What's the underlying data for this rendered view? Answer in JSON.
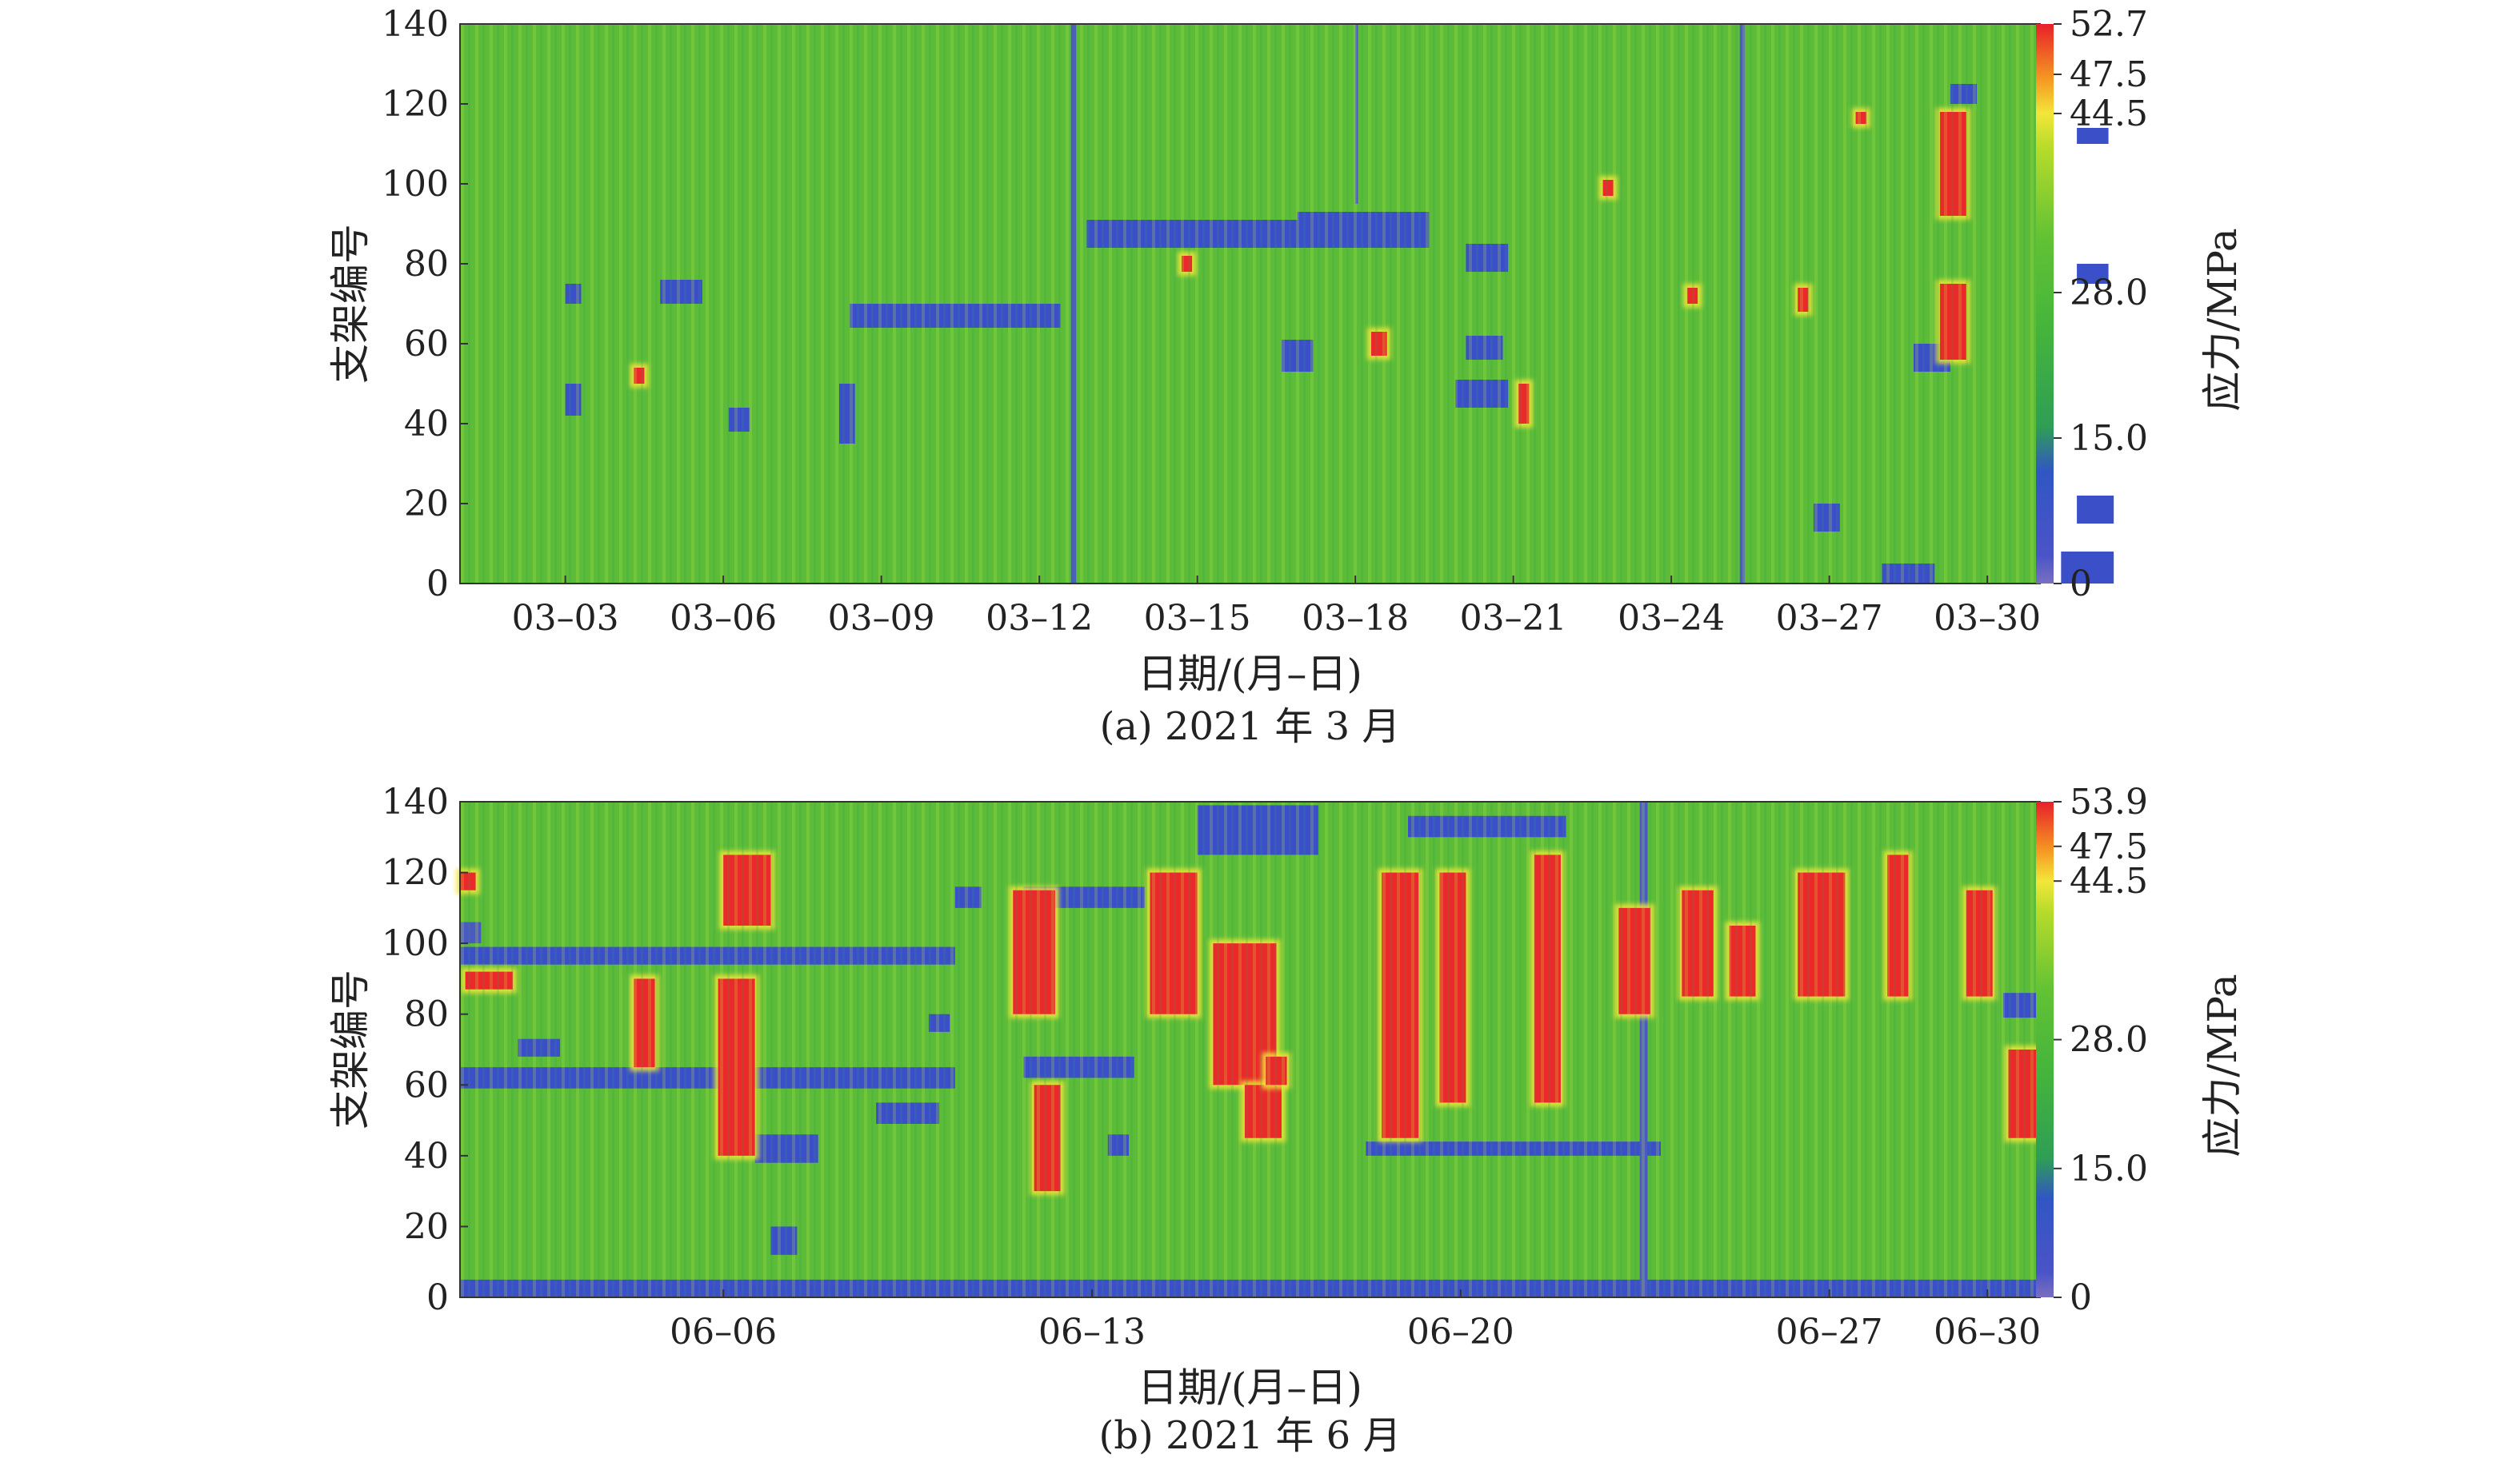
{
  "chart_data": [
    {
      "type": "heatmap",
      "caption": "(a) 2021 年 3 月",
      "xlabel": "日期/(月–日)",
      "ylabel": "支架编号",
      "colorbar_label": "应力/MPa",
      "x_ticks": [
        "03–03",
        "03–06",
        "03–09",
        "03–12",
        "03–15",
        "03–18",
        "03–21",
        "03–24",
        "03–27",
        "03–30"
      ],
      "y_ticks": [
        "0",
        "20",
        "40",
        "60",
        "80",
        "100",
        "120",
        "140"
      ],
      "ylim": [
        0,
        140
      ],
      "colorbar_ticks": [
        "0",
        "15.0",
        "28.0",
        "44.5",
        "47.5",
        "52.7"
      ],
      "colorbar_values": [
        0,
        15.0,
        28.0,
        44.5,
        47.5,
        52.7
      ],
      "features": [
        {
          "kind": "low",
          "x": [
            8.4,
            12.4
          ],
          "y": [
            64,
            70
          ]
        },
        {
          "kind": "low",
          "x": [
            12.9,
            16.9
          ],
          "y": [
            84,
            91
          ]
        },
        {
          "kind": "low",
          "x": [
            16.9,
            19.4
          ],
          "y": [
            84,
            93
          ]
        },
        {
          "kind": "low",
          "x": [
            4.8,
            5.6
          ],
          "y": [
            70,
            76
          ]
        },
        {
          "kind": "low",
          "x": [
            6.1,
            6.5
          ],
          "y": [
            38,
            44
          ]
        },
        {
          "kind": "low",
          "x": [
            20.1,
            20.9
          ],
          "y": [
            78,
            85
          ]
        },
        {
          "kind": "low",
          "x": [
            19.9,
            20.9
          ],
          "y": [
            44,
            51
          ]
        },
        {
          "kind": "low",
          "x": [
            20.1,
            20.8
          ],
          "y": [
            56,
            62
          ]
        },
        {
          "kind": "low",
          "x": [
            16.6,
            17.2
          ],
          "y": [
            53,
            61
          ]
        },
        {
          "kind": "low",
          "x": [
            28.6,
            29.3
          ],
          "y": [
            53,
            60
          ]
        },
        {
          "kind": "low",
          "x": [
            31.7,
            32.4
          ],
          "y": [
            15,
            22
          ]
        },
        {
          "kind": "low",
          "x": [
            31.7,
            32.3
          ],
          "y": [
            110,
            114
          ]
        },
        {
          "kind": "low",
          "x": [
            31.7,
            32.3
          ],
          "y": [
            75,
            80
          ]
        },
        {
          "kind": "low",
          "x": [
            26.7,
            27.2
          ],
          "y": [
            13,
            20
          ]
        },
        {
          "kind": "low",
          "x": [
            28.0,
            29.0
          ],
          "y": [
            0,
            5
          ]
        },
        {
          "kind": "low",
          "x": [
            31.4,
            32.4
          ],
          "y": [
            0,
            8
          ]
        },
        {
          "kind": "low",
          "x": [
            3.0,
            3.3
          ],
          "y": [
            70,
            75
          ]
        },
        {
          "kind": "low",
          "x": [
            3.0,
            3.3
          ],
          "y": [
            42,
            50
          ]
        },
        {
          "kind": "low",
          "x": [
            8.2,
            8.5
          ],
          "y": [
            35,
            50
          ]
        },
        {
          "kind": "low",
          "x": [
            29.3,
            29.8
          ],
          "y": [
            120,
            125
          ]
        },
        {
          "kind": "line",
          "x": [
            12.6,
            12.7
          ],
          "y": [
            0,
            140
          ]
        },
        {
          "kind": "line",
          "x": [
            25.3,
            25.4
          ],
          "y": [
            0,
            140
          ]
        },
        {
          "kind": "line",
          "x": [
            18.0,
            18.05
          ],
          "y": [
            95,
            140
          ]
        },
        {
          "kind": "high",
          "x": [
            29.1,
            29.6
          ],
          "y": [
            92,
            118
          ]
        },
        {
          "kind": "high",
          "x": [
            29.1,
            29.6
          ],
          "y": [
            56,
            75
          ]
        },
        {
          "kind": "high",
          "x": [
            18.3,
            18.6
          ],
          "y": [
            57,
            63
          ]
        },
        {
          "kind": "high",
          "x": [
            4.3,
            4.5
          ],
          "y": [
            50,
            54
          ]
        },
        {
          "kind": "high",
          "x": [
            14.7,
            14.9
          ],
          "y": [
            78,
            82
          ]
        },
        {
          "kind": "high",
          "x": [
            21.1,
            21.3
          ],
          "y": [
            40,
            50
          ]
        },
        {
          "kind": "high",
          "x": [
            22.7,
            22.9
          ],
          "y": [
            97,
            101
          ]
        },
        {
          "kind": "high",
          "x": [
            24.3,
            24.5
          ],
          "y": [
            70,
            74
          ]
        },
        {
          "kind": "high",
          "x": [
            26.4,
            26.6
          ],
          "y": [
            68,
            74
          ]
        },
        {
          "kind": "high",
          "x": [
            27.5,
            27.7
          ],
          "y": [
            115,
            118
          ]
        }
      ]
    },
    {
      "type": "heatmap",
      "caption": "(b) 2021 年 6 月",
      "xlabel": "日期/(月–日)",
      "ylabel": "支架编号",
      "colorbar_label": "应力/MPa",
      "x_ticks": [
        "06–06",
        "06–13",
        "06–20",
        "06–27",
        "06–30"
      ],
      "y_ticks": [
        "0",
        "20",
        "40",
        "60",
        "80",
        "100",
        "120",
        "140"
      ],
      "ylim": [
        0,
        140
      ],
      "colorbar_ticks": [
        "0",
        "15.0",
        "28.0",
        "44.5",
        "47.5",
        "53.9"
      ],
      "colorbar_values": [
        0,
        15.0,
        28.0,
        44.5,
        47.5,
        53.9
      ],
      "features": [
        {
          "kind": "low",
          "x": [
            1.0,
            10.4
          ],
          "y": [
            94,
            99
          ]
        },
        {
          "kind": "low",
          "x": [
            1.0,
            10.4
          ],
          "y": [
            59,
            65
          ]
        },
        {
          "kind": "low",
          "x": [
            1.0,
            31.0
          ],
          "y": [
            0,
            5
          ]
        },
        {
          "kind": "low",
          "x": [
            15.0,
            17.3
          ],
          "y": [
            125,
            139
          ]
        },
        {
          "kind": "low",
          "x": [
            11.7,
            14.0
          ],
          "y": [
            110,
            116
          ]
        },
        {
          "kind": "low",
          "x": [
            11.7,
            13.8
          ],
          "y": [
            62,
            68
          ]
        },
        {
          "kind": "low",
          "x": [
            6.6,
            7.8
          ],
          "y": [
            38,
            46
          ]
        },
        {
          "kind": "low",
          "x": [
            6.9,
            7.4
          ],
          "y": [
            12,
            20
          ]
        },
        {
          "kind": "low",
          "x": [
            9.9,
            10.3
          ],
          "y": [
            75,
            80
          ]
        },
        {
          "kind": "low",
          "x": [
            8.9,
            10.1
          ],
          "y": [
            49,
            55
          ]
        },
        {
          "kind": "low",
          "x": [
            2.1,
            2.9
          ],
          "y": [
            68,
            73
          ]
        },
        {
          "kind": "low",
          "x": [
            19.0,
            22.0
          ],
          "y": [
            130,
            136
          ]
        },
        {
          "kind": "low",
          "x": [
            18.2,
            23.8
          ],
          "y": [
            40,
            44
          ]
        },
        {
          "kind": "low",
          "x": [
            30.3,
            31.0
          ],
          "y": [
            79,
            86
          ]
        },
        {
          "kind": "low",
          "x": [
            10.4,
            10.9
          ],
          "y": [
            110,
            116
          ]
        },
        {
          "kind": "low",
          "x": [
            13.3,
            13.7
          ],
          "y": [
            40,
            46
          ]
        },
        {
          "kind": "line",
          "x": [
            23.4,
            23.55
          ],
          "y": [
            0,
            140
          ]
        },
        {
          "kind": "line",
          "x": [
            1.0,
            1.4
          ],
          "y": [
            100,
            106
          ]
        },
        {
          "kind": "high",
          "x": [
            6.0,
            6.9
          ],
          "y": [
            105,
            125
          ]
        },
        {
          "kind": "high",
          "x": [
            5.9,
            6.6
          ],
          "y": [
            40,
            90
          ]
        },
        {
          "kind": "high",
          "x": [
            4.3,
            4.7
          ],
          "y": [
            65,
            90
          ]
        },
        {
          "kind": "high",
          "x": [
            11.5,
            12.3
          ],
          "y": [
            80,
            115
          ]
        },
        {
          "kind": "high",
          "x": [
            11.9,
            12.4
          ],
          "y": [
            30,
            60
          ]
        },
        {
          "kind": "high",
          "x": [
            14.1,
            15.0
          ],
          "y": [
            80,
            120
          ]
        },
        {
          "kind": "high",
          "x": [
            15.3,
            16.5
          ],
          "y": [
            60,
            100
          ]
        },
        {
          "kind": "high",
          "x": [
            15.9,
            16.6
          ],
          "y": [
            45,
            60
          ]
        },
        {
          "kind": "high",
          "x": [
            18.5,
            19.2
          ],
          "y": [
            45,
            120
          ]
        },
        {
          "kind": "high",
          "x": [
            19.6,
            20.1
          ],
          "y": [
            55,
            120
          ]
        },
        {
          "kind": "high",
          "x": [
            21.4,
            21.9
          ],
          "y": [
            55,
            125
          ]
        },
        {
          "kind": "high",
          "x": [
            23.0,
            23.6
          ],
          "y": [
            80,
            110
          ]
        },
        {
          "kind": "high",
          "x": [
            24.2,
            24.8
          ],
          "y": [
            85,
            115
          ]
        },
        {
          "kind": "high",
          "x": [
            25.1,
            25.6
          ],
          "y": [
            85,
            105
          ]
        },
        {
          "kind": "high",
          "x": [
            26.4,
            27.3
          ],
          "y": [
            85,
            120
          ]
        },
        {
          "kind": "high",
          "x": [
            28.1,
            28.5
          ],
          "y": [
            85,
            125
          ]
        },
        {
          "kind": "high",
          "x": [
            29.6,
            30.1
          ],
          "y": [
            85,
            115
          ]
        },
        {
          "kind": "high",
          "x": [
            30.4,
            31.0
          ],
          "y": [
            45,
            70
          ]
        },
        {
          "kind": "high",
          "x": [
            1.0,
            1.3
          ],
          "y": [
            115,
            120
          ]
        },
        {
          "kind": "high",
          "x": [
            1.1,
            2.0
          ],
          "y": [
            87,
            92
          ]
        },
        {
          "kind": "high",
          "x": [
            16.3,
            16.7
          ],
          "y": [
            60,
            68
          ]
        }
      ]
    }
  ]
}
